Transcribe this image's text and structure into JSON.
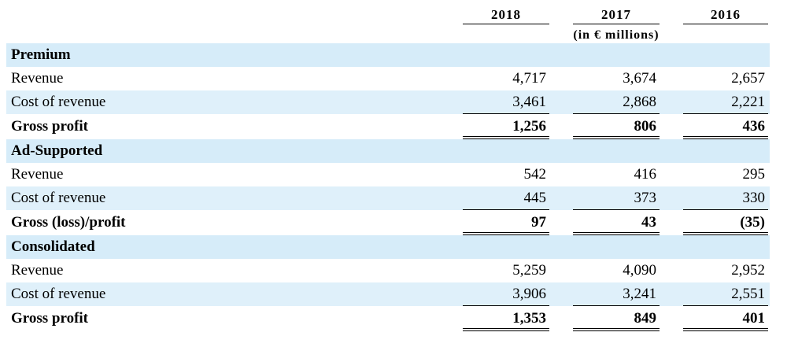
{
  "header": {
    "years": [
      "2018",
      "2017",
      "2016"
    ],
    "unit": "(in € millions)"
  },
  "sections": [
    {
      "title": "Premium",
      "rows": [
        {
          "label": "Revenue",
          "values": [
            "4,717",
            "3,674",
            "2,657"
          ]
        },
        {
          "label": "Cost of revenue",
          "values": [
            "3,461",
            "2,868",
            "2,221"
          ]
        }
      ],
      "total": {
        "label": "Gross profit",
        "values": [
          "1,256",
          "806",
          "436"
        ]
      }
    },
    {
      "title": "Ad-Supported",
      "rows": [
        {
          "label": "Revenue",
          "values": [
            "542",
            "416",
            "295"
          ]
        },
        {
          "label": "Cost of revenue",
          "values": [
            "445",
            "373",
            "330"
          ]
        }
      ],
      "total": {
        "label": "Gross (loss)/profit",
        "values": [
          "97",
          "43",
          "(35)"
        ]
      }
    },
    {
      "title": "Consolidated",
      "rows": [
        {
          "label": "Revenue",
          "values": [
            "5,259",
            "4,090",
            "2,952"
          ]
        },
        {
          "label": "Cost of revenue",
          "values": [
            "3,906",
            "3,241",
            "2,551"
          ]
        }
      ],
      "total": {
        "label": "Gross profit",
        "values": [
          "1,353",
          "849",
          "401"
        ]
      }
    }
  ],
  "colors": {
    "row_shade": "#dff0fa",
    "text": "#000000"
  }
}
